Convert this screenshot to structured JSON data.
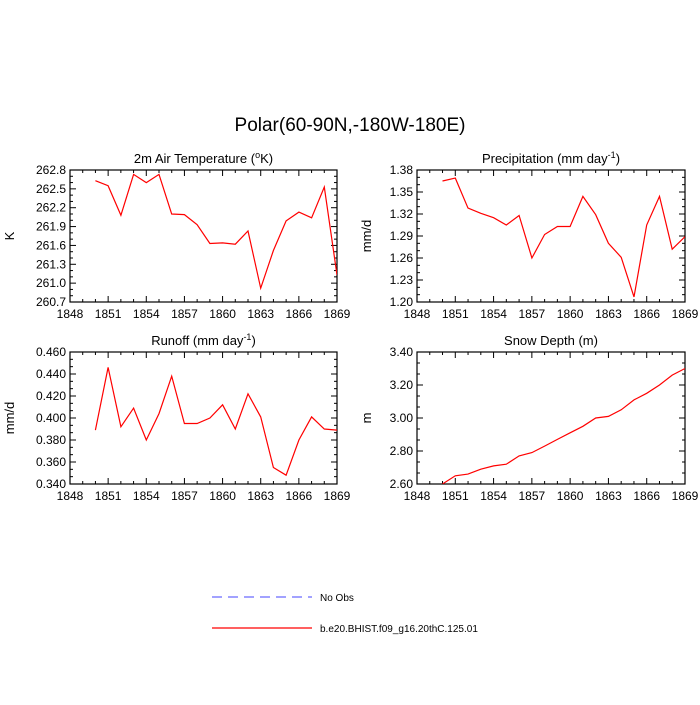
{
  "figure": {
    "title": "Polar(60-90N,-180W-180E)"
  },
  "legend": {
    "entries": [
      {
        "label": "No Obs",
        "style": "dashed",
        "color": "#6a6aff"
      },
      {
        "label": "b.e20.BHIST.f09_g16.20thC.125.01",
        "style": "solid",
        "color": "#ff0000"
      }
    ]
  },
  "chart_data": [
    {
      "type": "line",
      "title": "2m Air Temperature (°K)",
      "title_parts": [
        "2m Air Temperature (",
        "o",
        "K)"
      ],
      "ylabel": "K",
      "xlabel": "",
      "xlim": [
        1848,
        1869
      ],
      "ylim": [
        260.7,
        262.8
      ],
      "xticks": [
        1848,
        1851,
        1854,
        1857,
        1860,
        1863,
        1866,
        1869
      ],
      "xtick_labels": [
        "1848",
        "1851",
        "1854",
        "1857",
        "1860",
        "1863",
        "1866",
        "1869"
      ],
      "yticks": [
        260.7,
        261.0,
        261.3,
        261.6,
        261.9,
        262.2,
        262.5,
        262.8
      ],
      "ytick_labels": [
        "260.7",
        "261.0",
        "261.3",
        "261.6",
        "261.9",
        "262.2",
        "262.5",
        "262.8"
      ],
      "series": [
        {
          "color": "#ff0000",
          "x": [
            1850,
            1851,
            1852,
            1853,
            1854,
            1855,
            1856,
            1857,
            1858,
            1859,
            1860,
            1861,
            1862,
            1863,
            1864,
            1865,
            1866,
            1867,
            1868,
            1869
          ],
          "y": [
            262.63,
            262.55,
            262.08,
            262.73,
            262.6,
            262.73,
            262.1,
            262.09,
            261.93,
            261.63,
            261.64,
            261.62,
            261.83,
            260.92,
            261.52,
            261.99,
            262.13,
            262.04,
            262.53,
            261.13
          ]
        }
      ]
    },
    {
      "type": "line",
      "title": "Precipitation (mm day⁻¹)",
      "title_parts": [
        "Precipitation (mm day",
        "-1",
        ")"
      ],
      "ylabel": "mm/d",
      "xlabel": "",
      "xlim": [
        1848,
        1869
      ],
      "ylim": [
        1.2,
        1.38
      ],
      "xticks": [
        1848,
        1851,
        1854,
        1857,
        1860,
        1863,
        1866,
        1869
      ],
      "xtick_labels": [
        "1848",
        "1851",
        "1854",
        "1857",
        "1860",
        "1863",
        "1866",
        "1869"
      ],
      "yticks": [
        1.2,
        1.23,
        1.26,
        1.29,
        1.32,
        1.35,
        1.38
      ],
      "ytick_labels": [
        "1.20",
        "1.23",
        "1.26",
        "1.29",
        "1.32",
        "1.35",
        "1.38"
      ],
      "series": [
        {
          "color": "#ff0000",
          "x": [
            1850,
            1851,
            1852,
            1853,
            1854,
            1855,
            1856,
            1857,
            1858,
            1859,
            1860,
            1861,
            1862,
            1863,
            1864,
            1865,
            1866,
            1867,
            1868,
            1869
          ],
          "y": [
            1.365,
            1.369,
            1.328,
            1.321,
            1.315,
            1.305,
            1.318,
            1.26,
            1.292,
            1.303,
            1.303,
            1.344,
            1.319,
            1.28,
            1.261,
            1.207,
            1.305,
            1.344,
            1.272,
            1.289
          ]
        }
      ]
    },
    {
      "type": "line",
      "title": "Runoff (mm day⁻¹)",
      "title_parts": [
        "Runoff (mm day",
        "-1",
        ")"
      ],
      "ylabel": "mm/d",
      "xlabel": "",
      "xlim": [
        1848,
        1869
      ],
      "ylim": [
        0.34,
        0.46
      ],
      "xticks": [
        1848,
        1851,
        1854,
        1857,
        1860,
        1863,
        1866,
        1869
      ],
      "xtick_labels": [
        "1848",
        "1851",
        "1854",
        "1857",
        "1860",
        "1863",
        "1866",
        "1869"
      ],
      "yticks": [
        0.34,
        0.36,
        0.38,
        0.4,
        0.42,
        0.44,
        0.46
      ],
      "ytick_labels": [
        "0.340",
        "0.360",
        "0.380",
        "0.400",
        "0.420",
        "0.440",
        "0.460"
      ],
      "series": [
        {
          "color": "#ff0000",
          "x": [
            1850,
            1851,
            1852,
            1853,
            1854,
            1855,
            1856,
            1857,
            1858,
            1859,
            1860,
            1861,
            1862,
            1863,
            1864,
            1865,
            1866,
            1867,
            1868,
            1869
          ],
          "y": [
            0.389,
            0.446,
            0.392,
            0.409,
            0.38,
            0.404,
            0.438,
            0.395,
            0.395,
            0.4,
            0.412,
            0.39,
            0.422,
            0.401,
            0.355,
            0.348,
            0.38,
            0.401,
            0.39,
            0.389
          ]
        }
      ]
    },
    {
      "type": "line",
      "title": "Snow Depth (m)",
      "title_parts": [
        "Snow Depth (m)"
      ],
      "ylabel": "m",
      "xlabel": "",
      "xlim": [
        1848,
        1869
      ],
      "ylim": [
        2.6,
        3.4
      ],
      "xticks": [
        1848,
        1851,
        1854,
        1857,
        1860,
        1863,
        1866,
        1869
      ],
      "xtick_labels": [
        "1848",
        "1851",
        "1854",
        "1857",
        "1860",
        "1863",
        "1866",
        "1869"
      ],
      "yticks": [
        2.6,
        2.8,
        3.0,
        3.2,
        3.4
      ],
      "ytick_labels": [
        "2.60",
        "2.80",
        "3.00",
        "3.20",
        "3.40"
      ],
      "series": [
        {
          "color": "#ff0000",
          "x": [
            1850,
            1851,
            1852,
            1853,
            1854,
            1855,
            1856,
            1857,
            1858,
            1859,
            1860,
            1861,
            1862,
            1863,
            1864,
            1865,
            1866,
            1867,
            1868,
            1869
          ],
          "y": [
            2.6,
            2.65,
            2.66,
            2.69,
            2.71,
            2.72,
            2.77,
            2.79,
            2.83,
            2.87,
            2.91,
            2.95,
            3.0,
            3.01,
            3.05,
            3.11,
            3.15,
            3.2,
            3.26,
            3.3
          ]
        }
      ]
    }
  ]
}
